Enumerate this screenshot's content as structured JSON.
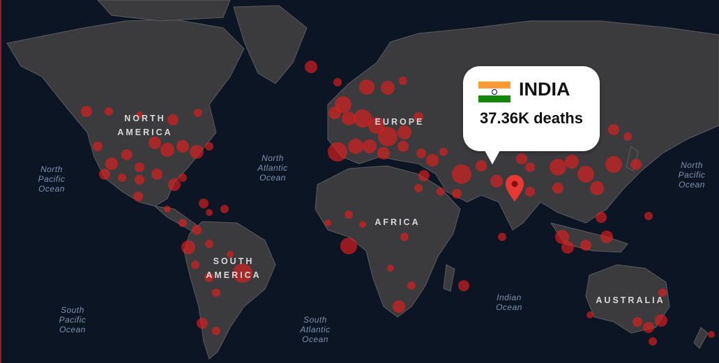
{
  "map": {
    "ocean_labels": [
      {
        "id": "north-pacific-ocean-left",
        "text": "North\nPacific\nOcean"
      },
      {
        "id": "north-atlantic-ocean",
        "text": "North\nAtlantic\nOcean"
      },
      {
        "id": "north-pacific-ocean-right",
        "text": "North\nPacific\nOcean"
      },
      {
        "id": "south-pacific-ocean",
        "text": "South\nPacific\nOcean"
      },
      {
        "id": "south-atlantic-ocean",
        "text": "South\nAtlantic\nOcean"
      },
      {
        "id": "indian-ocean",
        "text": "Indian\nOcean"
      }
    ],
    "continent_labels": [
      {
        "id": "north-america",
        "text": "NORTH\nAMERICA"
      },
      {
        "id": "europe",
        "text": "EUROPE"
      },
      {
        "id": "africa",
        "text": "AFRICA"
      },
      {
        "id": "south-america",
        "text": "SOUTH\nAMERICA"
      },
      {
        "id": "australia",
        "text": "AUSTRALIA"
      }
    ],
    "colors": {
      "ocean": "#0b1524",
      "land": "#3b3b3d",
      "border": "#5c5c60",
      "marker": "#e01e1e",
      "pin": "#e53935"
    }
  },
  "callout": {
    "country": "INDIA",
    "deaths": "37.36K deaths",
    "flag_icon": "india-flag-icon",
    "flag_colors": [
      "#ff9933",
      "#ffffff",
      "#138808"
    ]
  },
  "pin_icon": "map-pin-icon"
}
